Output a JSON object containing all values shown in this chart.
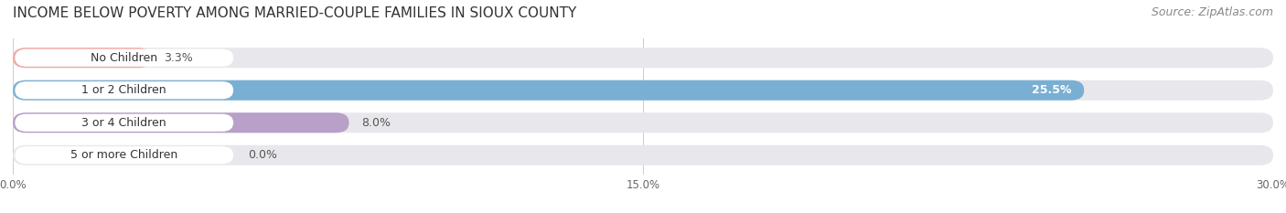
{
  "title": "INCOME BELOW POVERTY AMONG MARRIED-COUPLE FAMILIES IN SIOUX COUNTY",
  "source": "Source: ZipAtlas.com",
  "categories": [
    "No Children",
    "1 or 2 Children",
    "3 or 4 Children",
    "5 or more Children"
  ],
  "values": [
    3.3,
    25.5,
    8.0,
    0.0
  ],
  "bar_colors": [
    "#f2a8a4",
    "#7aafd4",
    "#b8a0c8",
    "#6ecfcf"
  ],
  "xlim": [
    0,
    30.0
  ],
  "xticks": [
    0.0,
    15.0,
    30.0
  ],
  "xticklabels": [
    "0.0%",
    "15.0%",
    "30.0%"
  ],
  "background_color": "#ffffff",
  "bar_bg_color": "#e8e8ec",
  "title_fontsize": 11,
  "source_fontsize": 9,
  "label_fontsize": 9,
  "value_fontsize": 9,
  "value_inside": [
    false,
    true,
    false,
    false
  ]
}
